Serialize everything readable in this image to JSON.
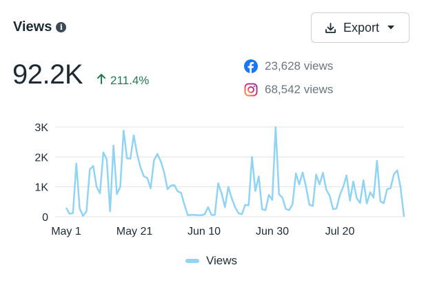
{
  "header": {
    "title": "Views",
    "info_icon": "info-icon"
  },
  "export": {
    "label": "Export",
    "icon": "download-icon",
    "caret_icon": "chevron-down-icon"
  },
  "summary": {
    "total": "92.2K",
    "change": "211.4%",
    "change_icon": "arrow-up-icon",
    "change_color": "#1d7a4a"
  },
  "platforms": [
    {
      "icon": "facebook-icon",
      "text": "23,628 views",
      "color": "#1877f2"
    },
    {
      "icon": "instagram-icon",
      "text": "68,542 views",
      "color": "#e1306c"
    }
  ],
  "chart_data": {
    "type": "line",
    "x_tick_labels": [
      "May 1",
      "May 21",
      "Jun 10",
      "Jun 30",
      "Jul 20"
    ],
    "y_tick_labels": [
      "0",
      "1K",
      "2K",
      "3K"
    ],
    "ylim": [
      0,
      3000
    ],
    "grid": true,
    "legend_position": "bottom",
    "line_color": "#8fd3f5",
    "series": [
      {
        "name": "Views",
        "values": [
          300,
          100,
          120,
          1780,
          270,
          30,
          180,
          1580,
          1700,
          1000,
          780,
          2150,
          1920,
          180,
          2380,
          760,
          1000,
          2880,
          1950,
          1940,
          2720,
          2100,
          1650,
          1350,
          1300,
          950,
          1890,
          2100,
          1850,
          1480,
          920,
          1040,
          1060,
          850,
          800,
          400,
          50,
          60,
          60,
          50,
          50,
          80,
          320,
          60,
          60,
          1120,
          780,
          320,
          1000,
          620,
          320,
          120,
          80,
          400,
          380,
          2000,
          860,
          1350,
          250,
          220,
          730,
          560,
          3000,
          750,
          640,
          260,
          220,
          420,
          1450,
          1080,
          1480,
          1000,
          400,
          360,
          1410,
          1080,
          1470,
          900,
          700,
          250,
          280,
          720,
          1000,
          1380,
          540,
          1180,
          620,
          460,
          1220,
          440,
          820,
          640,
          1870,
          520,
          450,
          920,
          950,
          1420,
          1550,
          960,
          0
        ]
      }
    ]
  }
}
